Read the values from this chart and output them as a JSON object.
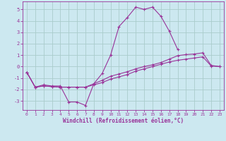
{
  "xlabel": "Windchill (Refroidissement éolien,°C)",
  "background_color": "#cce8f0",
  "grid_color": "#aacccc",
  "line_color": "#993399",
  "x_hours": [
    0,
    1,
    2,
    3,
    4,
    5,
    6,
    7,
    8,
    9,
    10,
    11,
    12,
    13,
    14,
    15,
    16,
    17,
    18,
    19,
    20,
    21,
    22,
    23
  ],
  "line1_y": [
    -0.5,
    -1.8,
    -1.6,
    -1.7,
    -1.7,
    -3.1,
    -3.1,
    -3.4,
    -1.5,
    -0.6,
    1.0,
    3.5,
    4.3,
    5.2,
    5.0,
    5.2,
    4.4,
    3.1,
    1.5,
    null,
    null,
    null,
    null,
    null
  ],
  "line2_y": [
    -0.5,
    -1.8,
    -1.7,
    -1.75,
    -1.8,
    -1.8,
    -1.8,
    -1.8,
    -1.6,
    -1.4,
    -1.1,
    -0.9,
    -0.7,
    -0.4,
    -0.2,
    0.0,
    0.2,
    0.4,
    0.55,
    0.65,
    0.75,
    0.85,
    0.05,
    0.0
  ],
  "line3_y": [
    -0.5,
    -1.8,
    -1.7,
    -1.75,
    -1.8,
    -1.8,
    -1.8,
    -1.8,
    -1.5,
    -1.2,
    -0.85,
    -0.65,
    -0.45,
    -0.2,
    0.0,
    0.15,
    0.35,
    0.65,
    0.95,
    1.05,
    1.1,
    1.2,
    0.1,
    0.0
  ],
  "xlim": [
    -0.5,
    23.5
  ],
  "ylim": [
    -3.8,
    5.7
  ],
  "yticks": [
    -3,
    -2,
    -1,
    0,
    1,
    2,
    3,
    4,
    5
  ],
  "xticks": [
    0,
    1,
    2,
    3,
    4,
    5,
    6,
    7,
    8,
    9,
    10,
    11,
    12,
    13,
    14,
    15,
    16,
    17,
    18,
    19,
    20,
    21,
    22,
    23
  ],
  "figsize": [
    3.2,
    2.0
  ],
  "dpi": 100
}
